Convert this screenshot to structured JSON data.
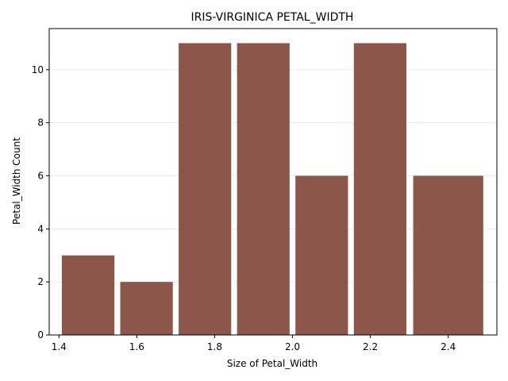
{
  "chart_data": {
    "type": "bar",
    "title": "IRIS-VIRGINICA PETAL_WIDTH",
    "xlabel": "Size of Petal_Width",
    "ylabel": "Petal_Width Count",
    "bins": [
      {
        "start": 1.4,
        "end": 1.55,
        "count": 3
      },
      {
        "start": 1.55,
        "end": 1.7,
        "count": 2
      },
      {
        "start": 1.7,
        "end": 1.85,
        "count": 11
      },
      {
        "start": 1.85,
        "end": 2.0,
        "count": 11
      },
      {
        "start": 2.0,
        "end": 2.15,
        "count": 6
      },
      {
        "start": 2.15,
        "end": 2.3,
        "count": 11
      },
      {
        "start": 2.3,
        "end": 2.5,
        "count": 6
      }
    ],
    "xlim": [
      1.375,
      2.525
    ],
    "ylim": [
      0,
      11.55
    ],
    "xticks": [
      1.4,
      1.6,
      1.8,
      2.0,
      2.2,
      2.4
    ],
    "xtick_labels": [
      "1.4",
      "1.6",
      "1.8",
      "2.0",
      "2.2",
      "2.4"
    ],
    "yticks": [
      0,
      2,
      4,
      6,
      8,
      10
    ],
    "ytick_labels": [
      "0",
      "2",
      "4",
      "6",
      "8",
      "10"
    ],
    "grid": "horizontal",
    "bar_color": "#8c564b"
  }
}
